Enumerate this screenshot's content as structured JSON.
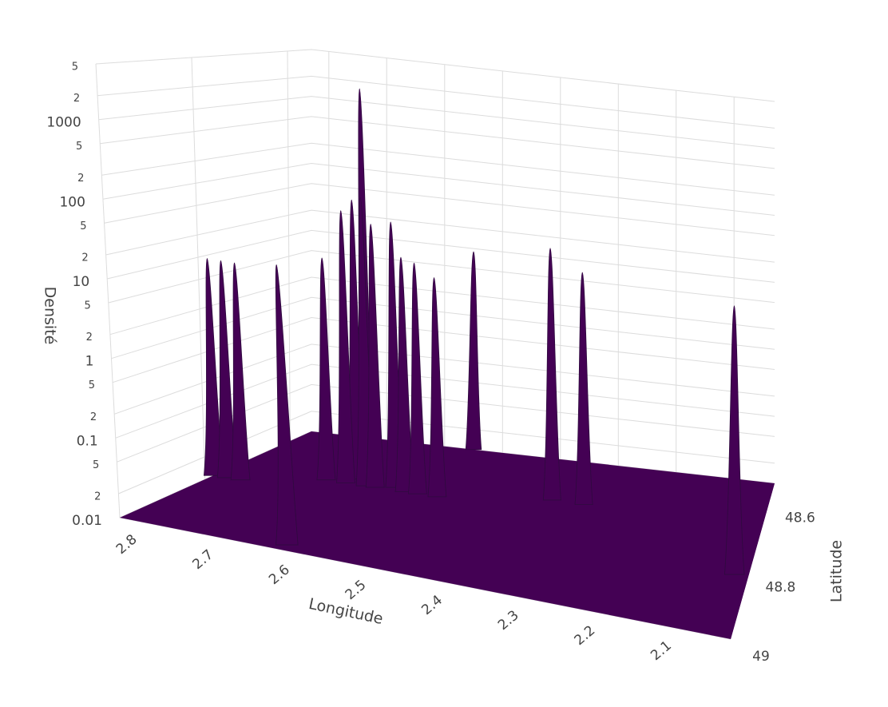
{
  "chart_data": {
    "type": "surface",
    "zscale": "log",
    "color": "#440154",
    "grid": true,
    "xlabel": "Longitude",
    "ylabel": "Latitude",
    "zlabel": "Densité",
    "x": [
      2.83,
      2.81,
      2.79,
      2.62,
      2.69,
      2.64,
      2.66,
      2.655,
      2.63,
      2.615,
      2.59,
      2.57,
      2.55,
      2.52,
      2.55,
      2.36,
      2.31,
      2.05
    ],
    "y": [
      48.78,
      48.78,
      48.78,
      48.98,
      48.73,
      48.71,
      48.73,
      48.71,
      48.73,
      48.73,
      48.72,
      48.73,
      48.73,
      48.73,
      48.55,
      48.685,
      48.685,
      48.82
    ],
    "z": [
      9,
      9,
      9,
      35,
      12,
      3000,
      60,
      80,
      100,
      45,
      50,
      18,
      16,
      11,
      9,
      36,
      19,
      40
    ],
    "xlim": [
      2.83,
      2.03
    ],
    "ylim": [
      49,
      48.55
    ],
    "zlim": [
      0.01,
      5000
    ],
    "xticks": [
      2.8,
      2.7,
      2.6,
      2.5,
      2.4,
      2.3,
      2.2,
      2.1
    ],
    "yticks": [
      48.6,
      48.8,
      49
    ],
    "zticks": [
      0.01,
      {
        "value": 0.02,
        "label": "2"
      },
      {
        "value": 0.05,
        "label": "5"
      },
      0.1,
      {
        "value": 0.2,
        "label": "2"
      },
      {
        "value": 0.5,
        "label": "5"
      },
      1,
      {
        "value": 2,
        "label": "2"
      },
      {
        "value": 5,
        "label": "5"
      },
      10,
      {
        "value": 20,
        "label": "2"
      },
      {
        "value": 50,
        "label": "5"
      },
      100,
      {
        "value": 200,
        "label": "2"
      },
      {
        "value": 500,
        "label": "5"
      },
      1000,
      {
        "value": 2000,
        "label": "2"
      },
      {
        "value": 5000,
        "label": "5"
      }
    ]
  }
}
